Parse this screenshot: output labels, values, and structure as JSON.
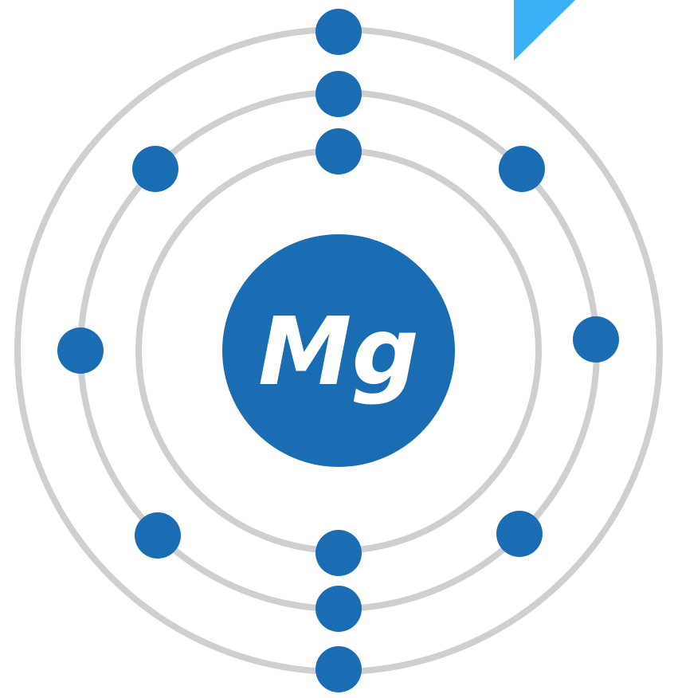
{
  "nucleus": {
    "label": "Mg"
  }
}
